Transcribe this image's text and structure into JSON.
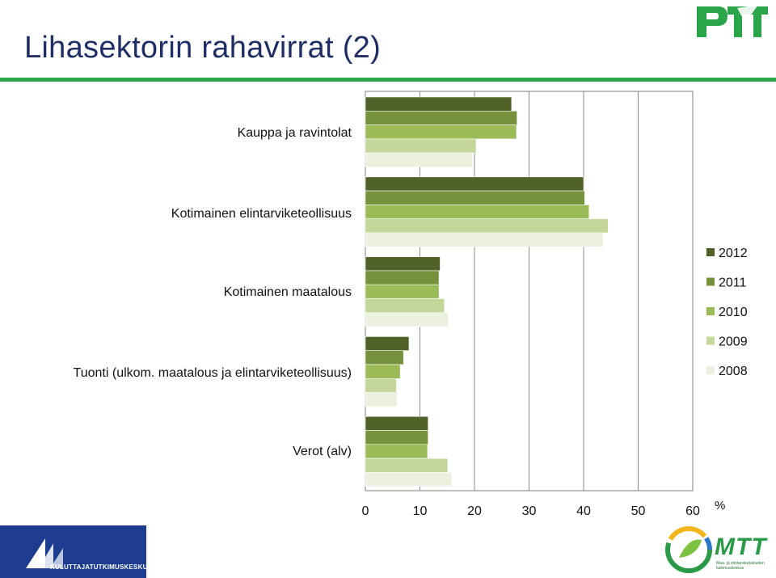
{
  "page": {
    "title": "Lihasektorin rahavirrat (2)",
    "logos": {
      "top_right": "PTT",
      "bottom_left": "KULUTTAJATUTKIMUSKESKUS",
      "bottom_right": "MTT",
      "bottom_right_sub": "Maa- ja elintarviketalouden tutkimuskeskus"
    },
    "colors": {
      "title": "#1f2f66",
      "rule": "#2aa54a",
      "kk_blue": "#1c3d8f",
      "mtt_green": "#2a9a48"
    }
  },
  "chart_data": {
    "type": "bar",
    "orientation": "horizontal",
    "title": "",
    "xlabel": "%",
    "ylabel": "",
    "xlim": [
      0,
      60
    ],
    "xticks": [
      0,
      10,
      20,
      30,
      40,
      50,
      60
    ],
    "grid": "vertical",
    "legend_position": "right",
    "categories": [
      "Kauppa ja ravintolat",
      "Kotimainen elintarviketeollisuus",
      "Kotimainen maatalous",
      "Tuonti (ulkom. maatalous ja elintarviketeollisuus)",
      "Verot (alv)"
    ],
    "series": [
      {
        "name": "2012",
        "color": "#4f6228",
        "values": [
          26.8,
          40.0,
          13.7,
          8.0,
          11.5
        ]
      },
      {
        "name": "2011",
        "color": "#76923c",
        "values": [
          27.8,
          40.2,
          13.5,
          7.0,
          11.5
        ]
      },
      {
        "name": "2010",
        "color": "#9bbb59",
        "values": [
          27.7,
          41.0,
          13.5,
          6.4,
          11.4
        ]
      },
      {
        "name": "2009",
        "color": "#c4d79b",
        "values": [
          20.3,
          44.5,
          14.5,
          5.7,
          15.1
        ]
      },
      {
        "name": "2008",
        "color": "#ebf1de",
        "values": [
          19.6,
          43.6,
          15.2,
          5.8,
          15.8
        ]
      }
    ]
  }
}
